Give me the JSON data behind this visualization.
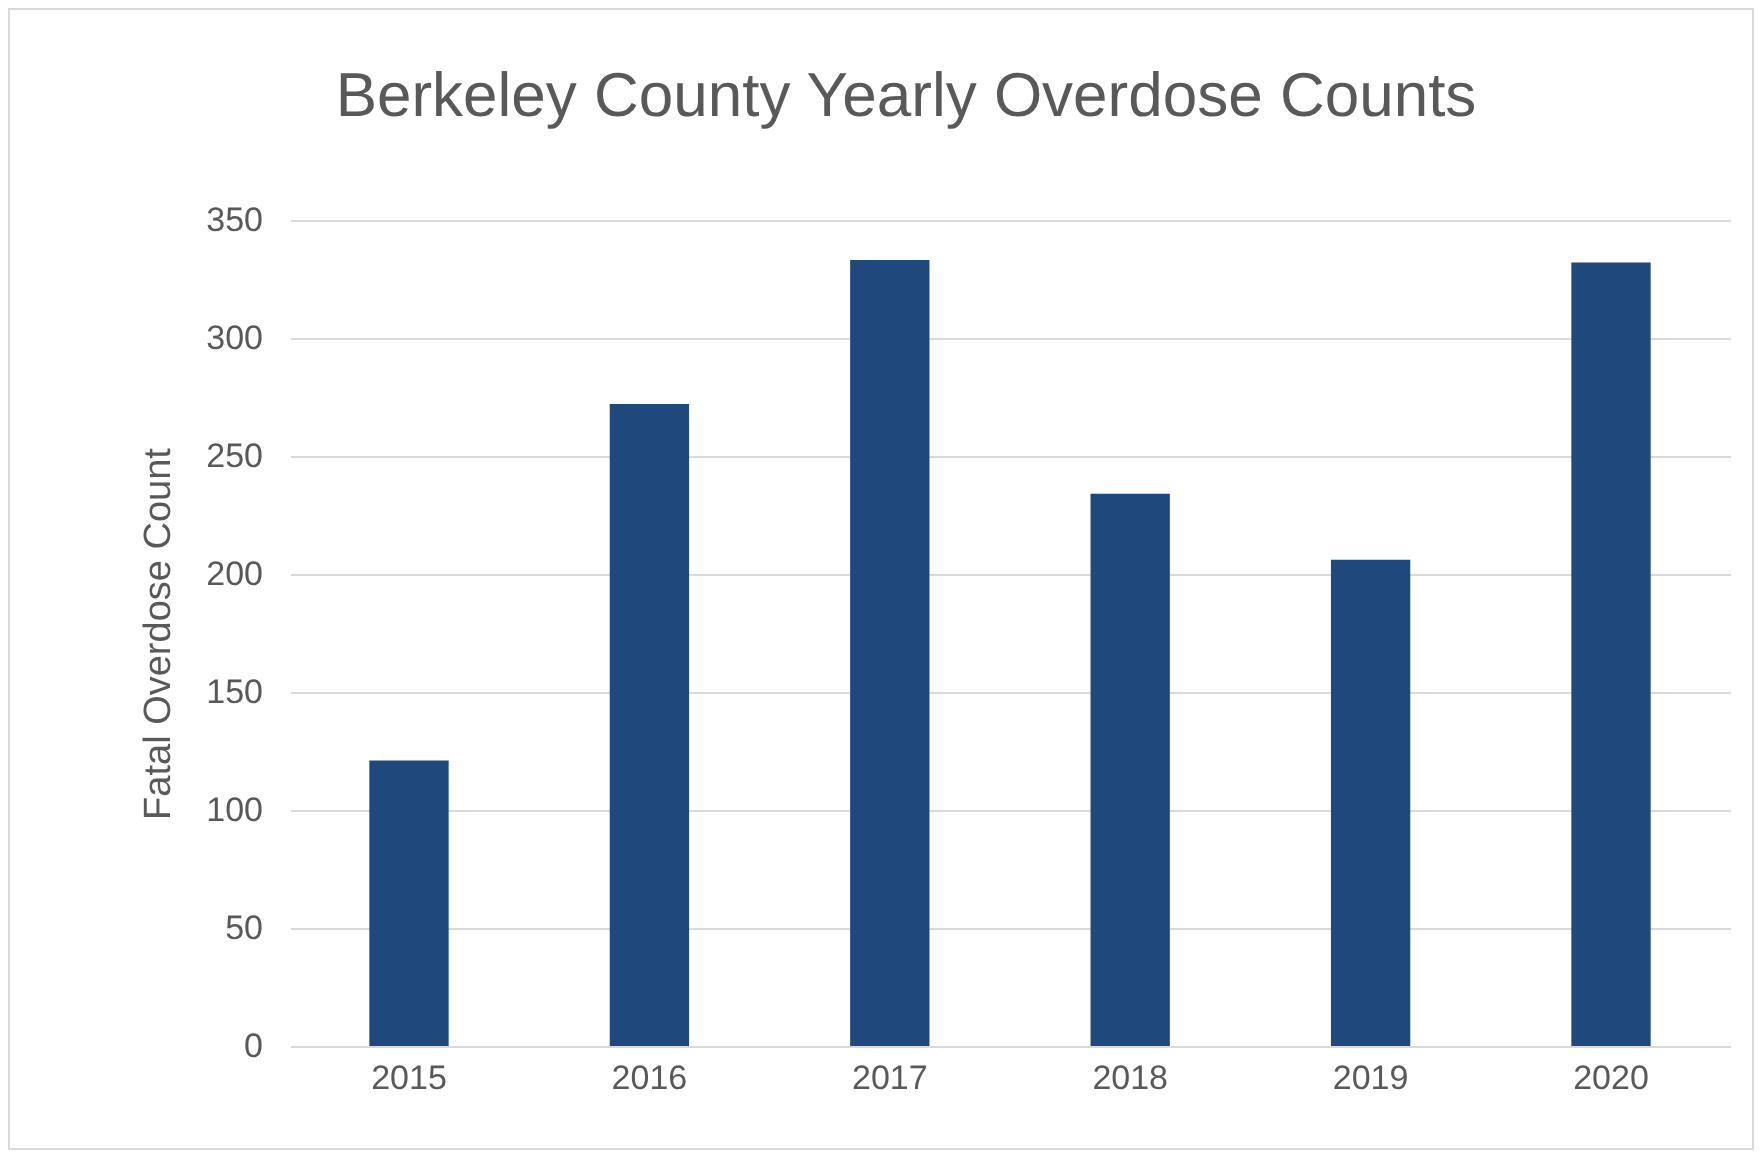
{
  "chart_data": {
    "type": "bar",
    "title": "Berkeley County Yearly Overdose Counts",
    "ylabel": "Fatal Overdose Count",
    "categories": [
      "2015",
      "2016",
      "2017",
      "2018",
      "2019",
      "2020"
    ],
    "values": [
      121,
      272,
      333,
      234,
      206,
      332
    ],
    "color": "#1f497d",
    "ylim": [
      0,
      350
    ],
    "yticks": [
      0,
      50,
      100,
      150,
      200,
      250,
      300,
      350
    ],
    "grid": "y"
  }
}
